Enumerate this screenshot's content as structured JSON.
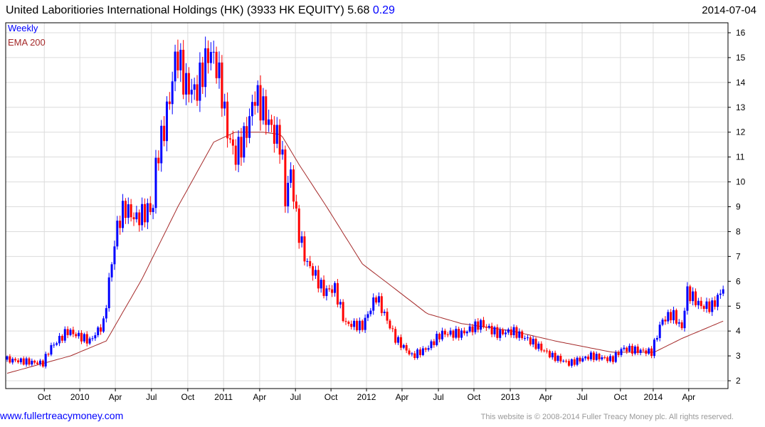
{
  "header": {
    "name": "United Laboritiories International Holdings (HK) (3933 HK EQUITY)",
    "last": "5.68",
    "change": "0.29",
    "date": "2014-07-04"
  },
  "legend": {
    "weekly": "Weekly",
    "ema": "EMA 200"
  },
  "footer": {
    "site": "www.fullertreacymoney.com",
    "copyright": "This website is © 2008-2014 Fuller Treacy Money plc. All rights reserved."
  },
  "colors": {
    "up": "#0000ff",
    "down": "#ff0000",
    "ema": "#a52a2a",
    "grid": "#dcdcdc"
  },
  "chart_data": {
    "type": "candlestick",
    "title": "United Laboritiories International Holdings (HK) (3933 HK EQUITY)",
    "frequency": "weekly",
    "ylim": [
      2,
      16
    ],
    "yticks": [
      2,
      3,
      4,
      5,
      6,
      7,
      8,
      9,
      10,
      11,
      12,
      13,
      14,
      15,
      16
    ],
    "xticks": [
      {
        "label": "Oct",
        "week": 13.5
      },
      {
        "label": "2010",
        "week": 26.4
      },
      {
        "label": "Apr",
        "week": 39.3
      },
      {
        "label": "Jul",
        "week": 52.4
      },
      {
        "label": "Oct",
        "week": 65.6
      },
      {
        "label": "2011",
        "week": 78.6
      },
      {
        "label": "Apr",
        "week": 91.7
      },
      {
        "label": "Jul",
        "week": 104.7
      },
      {
        "label": "Oct",
        "week": 117.6
      },
      {
        "label": "2012",
        "week": 130.5
      },
      {
        "label": "Apr",
        "week": 143.4
      },
      {
        "label": "Jul",
        "week": 156.6
      },
      {
        "label": "Oct",
        "week": 169.5
      },
      {
        "label": "2013",
        "week": 182.7
      },
      {
        "label": "Apr",
        "week": 195.6
      },
      {
        "label": "Jul",
        "week": 208.8
      },
      {
        "label": "Oct",
        "week": 222.7
      },
      {
        "label": "2014",
        "week": 234.6
      },
      {
        "label": "Apr",
        "week": 247.5
      }
    ],
    "weeks": 261,
    "price_path": [
      [
        0,
        2.85
      ],
      [
        13,
        2.7
      ],
      [
        15.5,
        3.3
      ],
      [
        22,
        4.0
      ],
      [
        30,
        3.6
      ],
      [
        35,
        4.3
      ],
      [
        37.5,
        6.4
      ],
      [
        40,
        8.2
      ],
      [
        42.6,
        9.0
      ],
      [
        46.5,
        8.5
      ],
      [
        53,
        9.0
      ],
      [
        54,
        10.7
      ],
      [
        57,
        12.2
      ],
      [
        59.4,
        13.6
      ],
      [
        61.5,
        15.3
      ],
      [
        64.6,
        13.9
      ],
      [
        68.5,
        13.6
      ],
      [
        71,
        14.5
      ],
      [
        73.6,
        15.3
      ],
      [
        76,
        14.7
      ],
      [
        78,
        13.6
      ],
      [
        79.6,
        12.2
      ],
      [
        82.7,
        11.0
      ],
      [
        86.6,
        11.9
      ],
      [
        90,
        13.5
      ],
      [
        93,
        12.9
      ],
      [
        97,
        11.9
      ],
      [
        99.5,
        11.6
      ],
      [
        101,
        9.3
      ],
      [
        103,
        10.4
      ],
      [
        105.4,
        8.2
      ],
      [
        108.5,
        6.8
      ],
      [
        111,
        6.4
      ],
      [
        115,
        5.6
      ],
      [
        119,
        5.7
      ],
      [
        122.7,
        4.3
      ],
      [
        129,
        4.2
      ],
      [
        134,
        5.4
      ],
      [
        141,
        3.7
      ],
      [
        147,
        3.0
      ],
      [
        152.5,
        3.3
      ],
      [
        157.6,
        3.9
      ],
      [
        165,
        3.9
      ],
      [
        172,
        4.3
      ],
      [
        178,
        3.9
      ],
      [
        183.5,
        4.0
      ],
      [
        190,
        3.6
      ],
      [
        197.7,
        3.0
      ],
      [
        204,
        2.7
      ],
      [
        212,
        3.0
      ],
      [
        219.6,
        2.85
      ],
      [
        223.5,
        3.3
      ],
      [
        234,
        3.15
      ],
      [
        237.6,
        4.4
      ],
      [
        241.6,
        4.7
      ],
      [
        245,
        4.1
      ],
      [
        246.8,
        5.6
      ],
      [
        252,
        5.0
      ],
      [
        256,
        5.0
      ],
      [
        260,
        5.68
      ]
    ],
    "ema200_path": [
      [
        0,
        2.3
      ],
      [
        23,
        3.0
      ],
      [
        36,
        3.6
      ],
      [
        49,
        6.1
      ],
      [
        62,
        9.0
      ],
      [
        75,
        11.6
      ],
      [
        82.7,
        12.0
      ],
      [
        93,
        12.0
      ],
      [
        99.5,
        11.9
      ],
      [
        106,
        10.7
      ],
      [
        116,
        9.0
      ],
      [
        129,
        6.7
      ],
      [
        142,
        5.6
      ],
      [
        152.5,
        4.7
      ],
      [
        165,
        4.3
      ],
      [
        183.5,
        4.0
      ],
      [
        199,
        3.6
      ],
      [
        219.6,
        3.15
      ],
      [
        235,
        3.15
      ],
      [
        245,
        3.7
      ],
      [
        260,
        4.4
      ]
    ]
  }
}
